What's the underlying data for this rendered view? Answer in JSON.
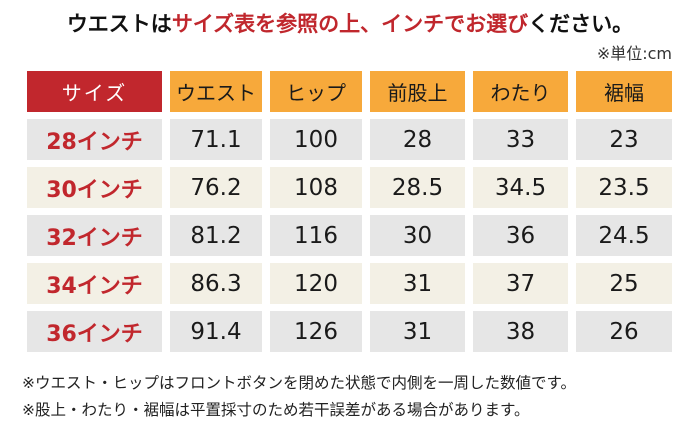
{
  "title": {
    "part1": "ウエストは",
    "part2": "サイズ表を参照の上、インチでお選び",
    "part3": "ください。"
  },
  "unit_note": "※単位:cm",
  "table": {
    "headers": [
      "サイズ",
      "ウエスト",
      "ヒップ",
      "前股上",
      "わたり",
      "裾幅"
    ],
    "rows": [
      {
        "size": "28インチ",
        "values": [
          "71.1",
          "100",
          "28",
          "33",
          "23"
        ]
      },
      {
        "size": "30インチ",
        "values": [
          "76.2",
          "108",
          "28.5",
          "34.5",
          "23.5"
        ]
      },
      {
        "size": "32インチ",
        "values": [
          "81.2",
          "116",
          "30",
          "36",
          "24.5"
        ]
      },
      {
        "size": "34インチ",
        "values": [
          "86.3",
          "120",
          "31",
          "37",
          "25"
        ]
      },
      {
        "size": "36インチ",
        "values": [
          "91.4",
          "126",
          "31",
          "38",
          "26"
        ]
      }
    ]
  },
  "notes": [
    "※ウエスト・ヒップはフロントボタンを閉めた状態で内側を一周した数値です。",
    "※股上・わたり・裾幅は平置採寸のため若干誤差がある場合があります。"
  ],
  "colors": {
    "accent_red": "#c1272d",
    "header_orange": "#f7a93b",
    "row_gray": "#e6e6e6",
    "row_cream": "#f3f0e5"
  }
}
